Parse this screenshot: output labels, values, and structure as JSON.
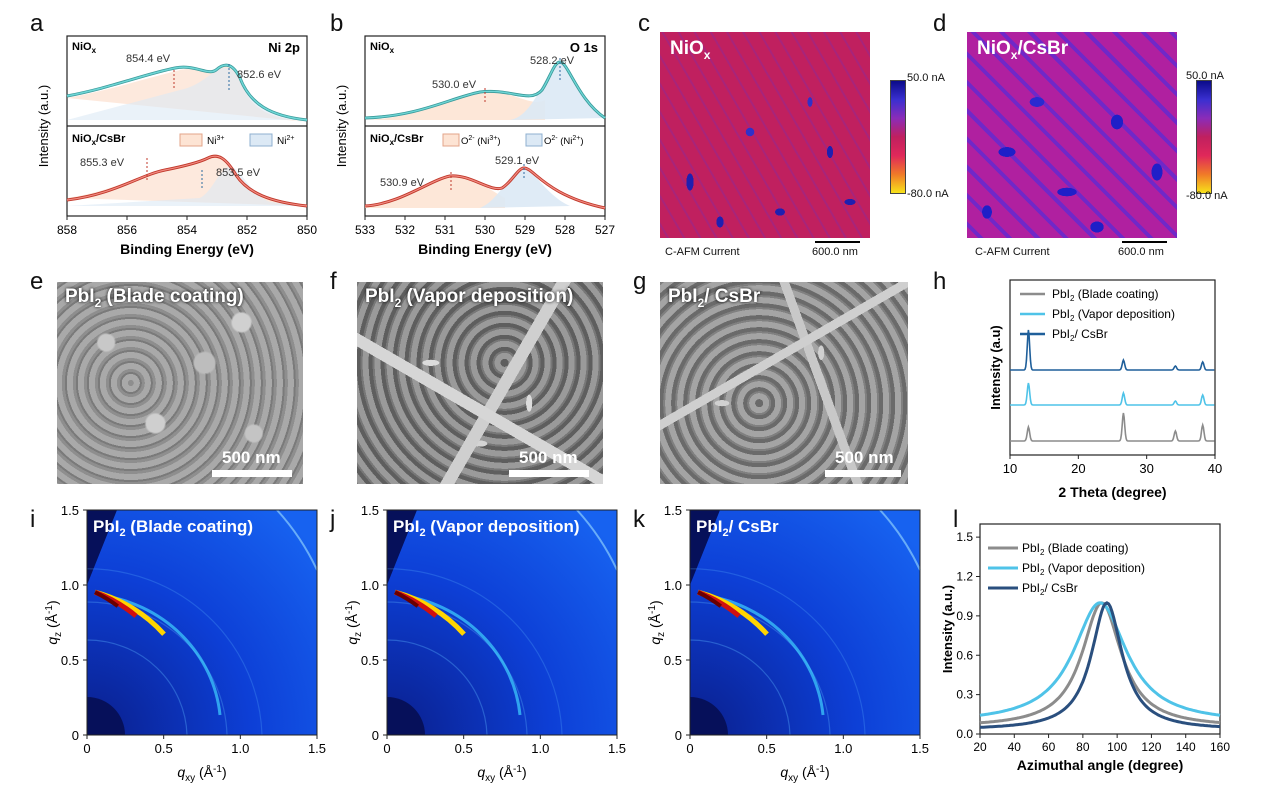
{
  "panel_letters": [
    "a",
    "b",
    "c",
    "d",
    "e",
    "f",
    "g",
    "h",
    "i",
    "j",
    "k",
    "l"
  ],
  "a": {
    "top_label": "NiO",
    "top_sub": "x",
    "element": "Ni 2p",
    "bottom_label": "NiO",
    "bottom_sub": "x",
    "bottom_suffix": "/CsBr",
    "peaks_top": [
      "854.4 eV",
      "852.6 eV"
    ],
    "peaks_bottom": [
      "855.3 eV",
      "853.5 eV"
    ],
    "legend": [
      "Ni",
      "Ni"
    ],
    "legend_sup": [
      "3+",
      "2+"
    ],
    "ylabel": "Intensity (a.u.)",
    "xlabel": "Binding Energy (eV)",
    "xticks": [
      "858",
      "856",
      "854",
      "852",
      "850"
    ]
  },
  "b": {
    "top_label": "NiO",
    "top_sub": "x",
    "element": "O 1s",
    "bottom_label": "NiO",
    "bottom_sub": "x",
    "bottom_suffix": "/CsBr",
    "peaks_top": [
      "530.0 eV",
      "528.2 eV"
    ],
    "peaks_bottom": [
      "530.9 eV",
      "529.1 eV"
    ],
    "legend": [
      "O (Ni )",
      "O (Ni )"
    ],
    "legend_a": [
      "O",
      "(Ni",
      "O",
      "(Ni"
    ],
    "legend_sup": [
      "2-",
      "3+",
      "2-",
      "2+"
    ],
    "ylabel": "Intensity (a.u.)",
    "xlabel": "Binding Energy (eV)",
    "xticks": [
      "533",
      "532",
      "531",
      "530",
      "529",
      "528",
      "527"
    ]
  },
  "c": {
    "title": "NiO",
    "title_sub": "x",
    "cb_max": "50.0 nA",
    "cb_min": "-80.0 nA",
    "caption": "C-AFM Current",
    "scale": "600.0 nm"
  },
  "d": {
    "title": "NiO",
    "title_sub": "x",
    "title_suffix": "/CsBr",
    "cb_max": "50.0 nA",
    "cb_min": "-80.0 nA",
    "caption": "C-AFM Current",
    "scale": "600.0 nm"
  },
  "e": {
    "title": "PbI",
    "title_sub": "2",
    "title_suffix": " (Blade coating)",
    "scale": "500 nm"
  },
  "f": {
    "title": "PbI",
    "title_sub": "2",
    "title_suffix": " (Vapor deposition)",
    "scale": "500 nm"
  },
  "g": {
    "title": "PbI",
    "title_sub": "2",
    "title_suffix": "/ CsBr",
    "scale": "500 nm"
  },
  "chart_data": [
    {
      "type": "line",
      "panel": "h",
      "title": "",
      "xlabel": "2 Theta (degree)",
      "ylabel": "Intensity (a.u)",
      "xlim": [
        10,
        40
      ],
      "xticks": [
        "10",
        "20",
        "30",
        "40"
      ],
      "series": [
        {
          "name": "PbI2 (Blade coating)",
          "label": "PbI",
          "sub": "2",
          "suffix": " (Blade coating)",
          "color": "#8c8c8c",
          "peaks": [
            [
              12.7,
              0.35
            ],
            [
              26.6,
              0.7
            ],
            [
              34.2,
              0.25
            ],
            [
              38.2,
              0.4
            ]
          ]
        },
        {
          "name": "PbI2 (Vapor deposition)",
          "label": "PbI",
          "sub": "2",
          "suffix": " (Vapor deposition)",
          "color": "#4fc3e8",
          "peaks": [
            [
              12.7,
              0.55
            ],
            [
              26.6,
              0.3
            ],
            [
              34.2,
              0.1
            ],
            [
              38.2,
              0.25
            ]
          ]
        },
        {
          "name": "PbI2/ CsBr",
          "label": "PbI",
          "sub": "2",
          "suffix": "/ CsBr",
          "color": "#1f5f9a",
          "peaks": [
            [
              12.7,
              1.0
            ],
            [
              26.6,
              0.25
            ],
            [
              34.2,
              0.1
            ],
            [
              38.2,
              0.2
            ]
          ]
        }
      ]
    },
    {
      "type": "line",
      "panel": "l",
      "title": "",
      "xlabel": "Azimuthal angle (degree)",
      "ylabel": "Intensity (a.u.)",
      "xlim": [
        20,
        160
      ],
      "ylim": [
        0,
        1.6
      ],
      "xticks": [
        "20",
        "40",
        "60",
        "80",
        "100",
        "120",
        "140",
        "160"
      ],
      "yticks": [
        "0.0",
        "0.3",
        "0.6",
        "0.9",
        "1.2",
        "1.5"
      ],
      "series": [
        {
          "name": "PbI2 (Blade coating)",
          "label": "PbI",
          "sub": "2",
          "suffix": " (Blade coating)",
          "color": "#8c8c8c",
          "center": 91,
          "width": 14,
          "base": 0.05
        },
        {
          "name": "PbI2 (Vapor deposition)",
          "label": "PbI",
          "sub": "2",
          "suffix": " (Vapor deposition)",
          "color": "#4fc3e8",
          "center": 90,
          "width": 19,
          "base": 0.08
        },
        {
          "name": "PbI2/ CsBr",
          "label": "PbI",
          "sub": "2",
          "suffix": "/ CsBr",
          "color": "#2a4f7e",
          "center": 94,
          "width": 11,
          "base": 0.03
        }
      ]
    }
  ],
  "giwaxs": [
    {
      "letter": "i",
      "title": "PbI",
      "sub": "2",
      "suffix": " (Blade coating)"
    },
    {
      "letter": "j",
      "title": "PbI",
      "sub": "2",
      "suffix": " (Vapor deposition)"
    },
    {
      "letter": "k",
      "title": "PbI",
      "sub": "2",
      "suffix": "/ CsBr"
    }
  ],
  "giwaxs_axes": {
    "xlabel_q": "q",
    "xlabel_sub": "xy",
    "xlabel_unit": " (Å",
    "xlabel_exp": "-1",
    "ylabel_q": "q",
    "ylabel_sub": "z",
    "xticks": [
      "0",
      "0.5",
      "1.0",
      "1.5"
    ],
    "yticks": [
      "0",
      "0.5",
      "1.0",
      "1.5"
    ]
  }
}
